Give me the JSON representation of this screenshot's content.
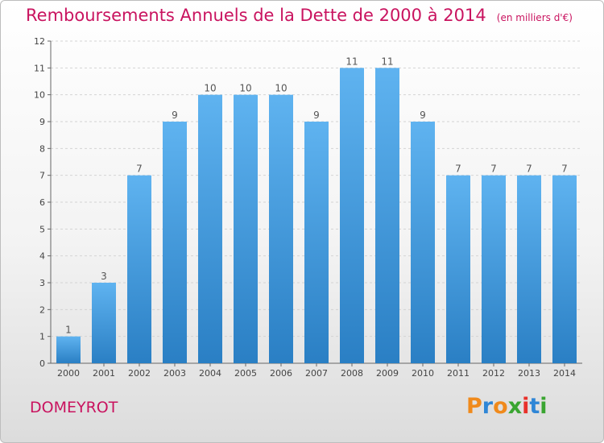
{
  "title": "Remboursements Annuels de la Dette de 2000 à 2014",
  "subtitle": "(en milliers d'€)",
  "town": "DOMEYROT",
  "logo": {
    "text": "Proxiti",
    "colors": [
      "#f08a1c",
      "#2f86d6",
      "#f08a1c",
      "#3aa531",
      "#e8302a",
      "#2f86d6",
      "#3aa531"
    ]
  },
  "colors": {
    "title": "#c9135f",
    "bar_light": "#5fb3f0",
    "bar_dark": "#2a7fc4"
  },
  "chart_data": {
    "type": "bar",
    "categories": [
      "2000",
      "2001",
      "2002",
      "2003",
      "2004",
      "2005",
      "2006",
      "2007",
      "2008",
      "2009",
      "2010",
      "2011",
      "2012",
      "2013",
      "2014"
    ],
    "values": [
      1,
      3,
      7,
      9,
      10,
      10,
      10,
      9,
      11,
      11,
      9,
      7,
      7,
      7,
      7
    ],
    "ylim": [
      0,
      12
    ],
    "yticks": [
      0,
      1,
      2,
      3,
      4,
      5,
      6,
      7,
      8,
      9,
      10,
      11,
      12
    ],
    "grid": "y-major"
  }
}
